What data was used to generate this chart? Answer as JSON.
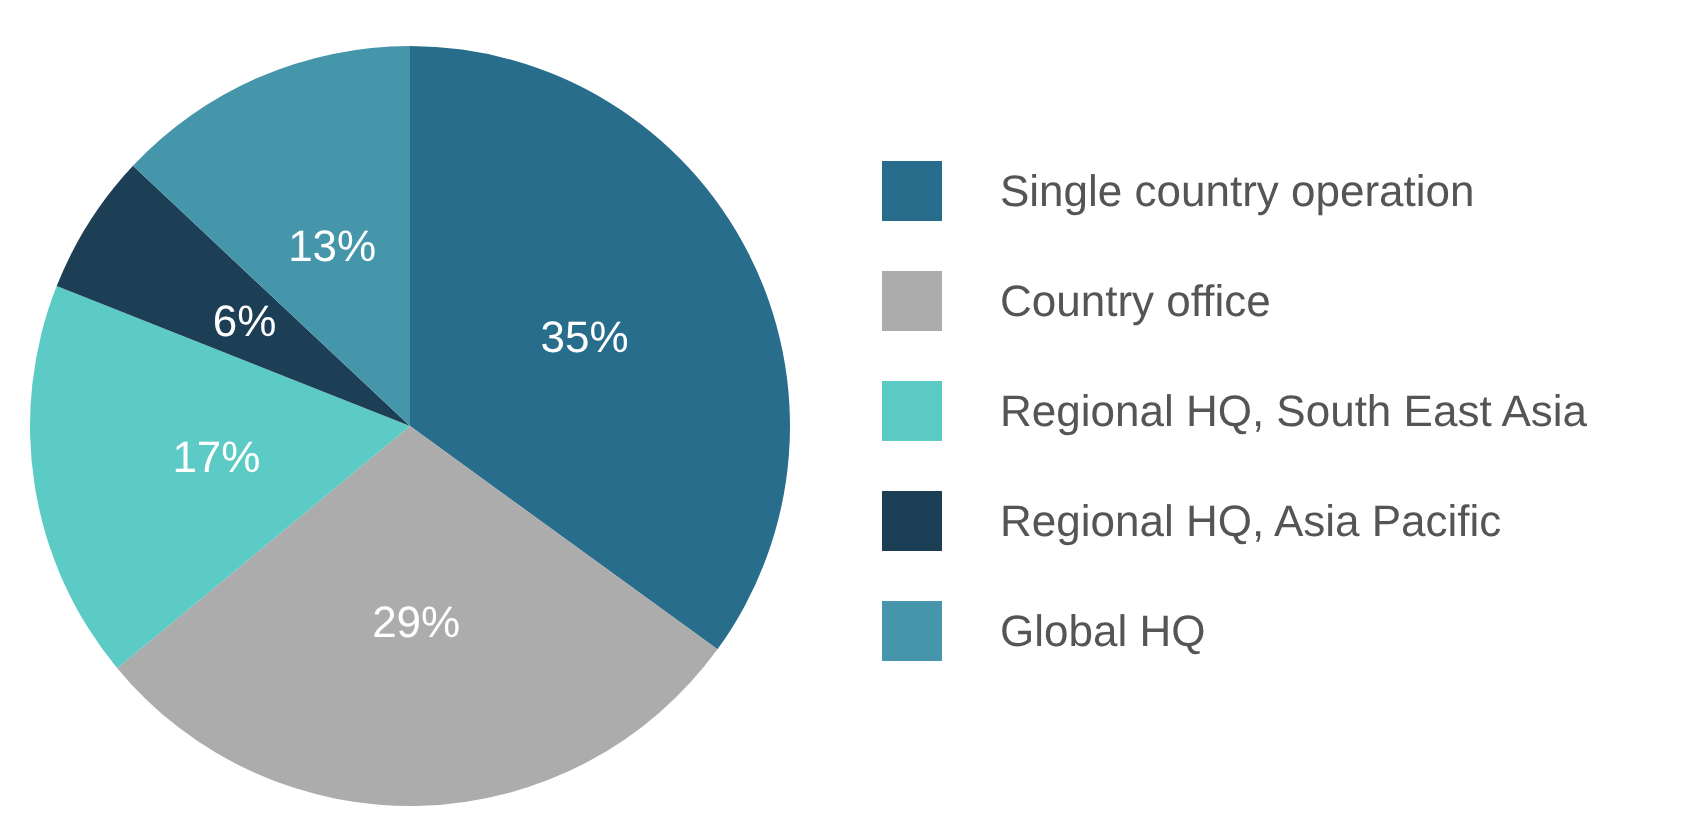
{
  "chart_data": {
    "type": "pie",
    "categories": [
      "Single country operation",
      "Country office",
      "Regional HQ, South East Asia",
      "Regional HQ, Asia Pacific",
      "Global HQ"
    ],
    "values": [
      35,
      29,
      17,
      6,
      13
    ],
    "colors": [
      "#286d8c",
      "#acacac",
      "#5ccac5",
      "#1d3f55",
      "#4596aa"
    ],
    "value_labels": [
      "35%",
      "29%",
      "17%",
      "6%",
      "13%"
    ],
    "legend": "right"
  }
}
